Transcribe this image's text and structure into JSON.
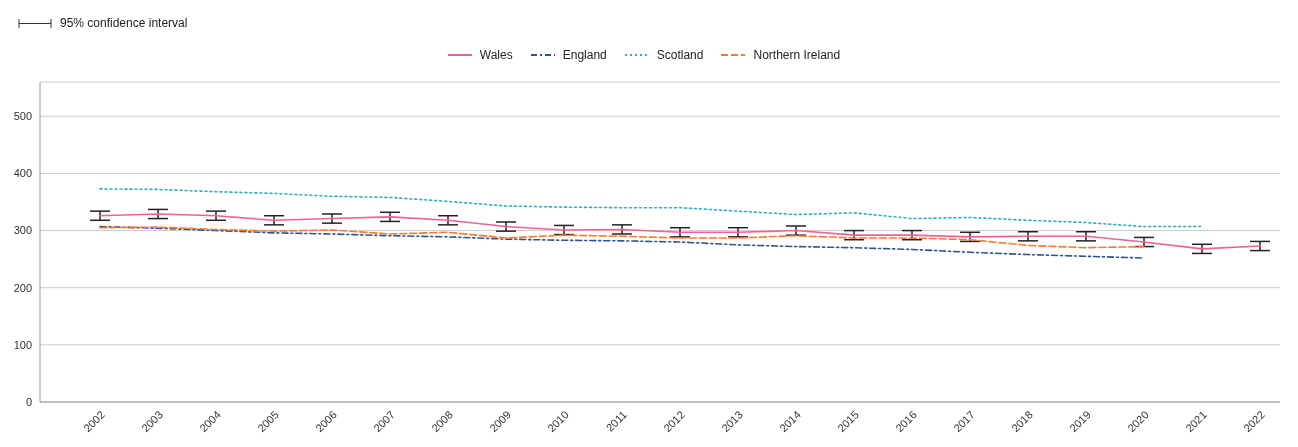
{
  "chart_data": {
    "type": "line",
    "annotations": [
      "95% confidence interval"
    ],
    "categories": [
      "2002",
      "2003",
      "2004",
      "2005",
      "2006",
      "2007",
      "2008",
      "2009",
      "2010",
      "2011",
      "2012",
      "2013",
      "2014",
      "2015",
      "2016",
      "2017",
      "2018",
      "2019",
      "2020",
      "2021",
      "2022"
    ],
    "series": [
      {
        "name": "Wales",
        "color": "#f0609a",
        "line_style": "solid",
        "values": [
          326,
          329,
          326,
          318,
          321,
          324,
          318,
          307,
          301,
          302,
          297,
          297,
          300,
          292,
          292,
          289,
          290,
          290,
          280,
          268,
          273
        ],
        "errors": [
          8,
          8,
          8,
          8,
          8,
          8,
          8,
          8,
          8,
          8,
          8,
          8,
          8,
          8,
          8,
          8,
          8,
          8,
          8,
          8,
          8
        ]
      },
      {
        "name": "England",
        "color": "#2f5591",
        "line_style": "dashdot",
        "values": [
          307,
          304,
          300,
          296,
          294,
          291,
          289,
          285,
          283,
          282,
          280,
          275,
          272,
          270,
          267,
          262,
          258,
          255,
          252,
          null,
          null
        ]
      },
      {
        "name": "Scotland",
        "color": "#2ab0c0",
        "line_style": "dotted",
        "values": [
          373,
          372,
          368,
          365,
          360,
          358,
          351,
          343,
          341,
          340,
          340,
          334,
          328,
          331,
          321,
          323,
          318,
          314,
          307,
          307,
          null
        ]
      },
      {
        "name": "Northern Ireland",
        "color": "#f47a2c",
        "line_style": "dashed",
        "values": [
          305,
          306,
          302,
          299,
          301,
          294,
          297,
          287,
          292,
          290,
          287,
          287,
          291,
          287,
          287,
          284,
          274,
          270,
          272,
          null,
          null
        ]
      }
    ],
    "ylim": [
      0,
      560
    ],
    "yticks": [
      0,
      100,
      200,
      300,
      400,
      500
    ],
    "grid": "y",
    "legend": "top",
    "marker": "none"
  }
}
